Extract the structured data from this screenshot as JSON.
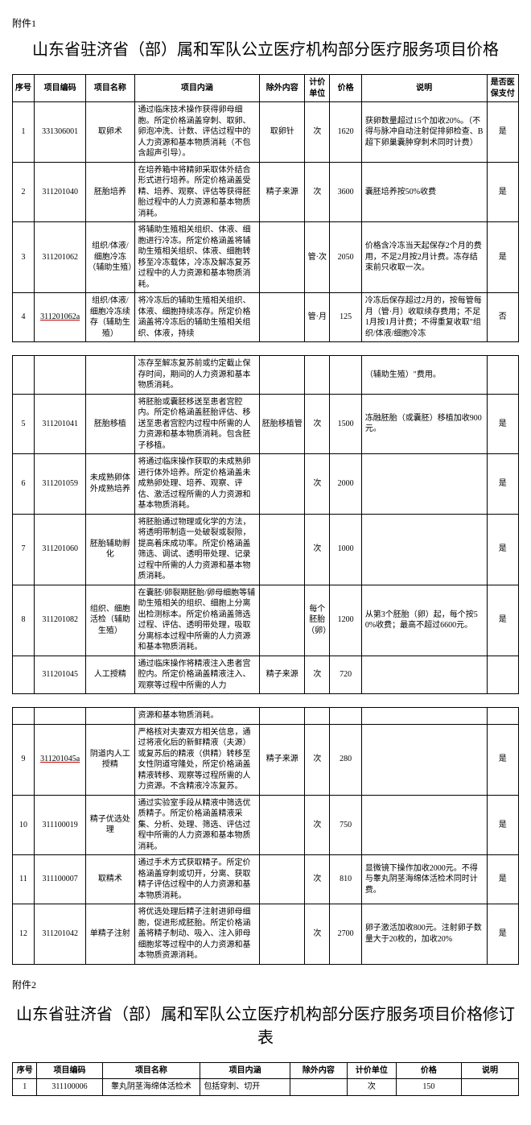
{
  "attachment1": {
    "label": "附件1",
    "title": "山东省驻济省（部）属和军队公立医疗机构部分医疗服务项目价格",
    "headers": {
      "seq": "序号",
      "code": "项目编码",
      "name": "项目名称",
      "desc": "项目内涵",
      "excl": "除外内容",
      "unit": "计价单位",
      "price": "价格",
      "note": "说明",
      "ins": "是否医保支付"
    },
    "rows": [
      {
        "seq": "1",
        "code": "331306001",
        "name": "取卵术",
        "desc": "通过临床技术操作获得卵母细胞。所定价格涵盖穿刺、取卵、卵泡冲洗、计数、评估过程中的人力资源和基本物质消耗（不包含超声引导）。",
        "excl": "取卵针",
        "unit": "次",
        "price": "1620",
        "note": "获卵数量超过15个加收20%。（不得与脉冲自动注射促排卵检查、B超下卵巢囊肿穿刺术同时计费）",
        "ins": "是"
      },
      {
        "seq": "2",
        "code": "311201040",
        "name": "胚胎培养",
        "desc": "在培养箱中将精卵采取体外结合形式进行培养。所定价格涵盖受精、培养、观察、评估等获得胚胎过程中的人力资源和基本物质消耗。",
        "excl": "精子来源",
        "unit": "次",
        "price": "3600",
        "note": "囊胚培养按50%收费",
        "ins": "是"
      },
      {
        "seq": "3",
        "code": "311201062",
        "name": "组织/体液/细胞冷冻（辅助生殖）",
        "desc": "将辅助生殖相关组织、体液、细胞进行冷冻。所定价格涵盖将辅助生殖相关组织、体液、细胞转移至冷冻载体，冷冻及解冻复苏过程中的人力资源和基本物质消耗。",
        "excl": "",
        "unit": "管·次",
        "price": "2050",
        "note": "价格含冷冻当天起保存2个月的费用，不足2月按2月计费。冻存结束前只收取一次。",
        "ins": "是"
      },
      {
        "seq": "4",
        "code": "311201062a",
        "code_underline": true,
        "name": "组织/体液/细胞冷冻续存（辅助生殖）",
        "desc": "将冷冻后的辅助生殖相关组织、体液、细胞持续冻存。所定价格涵盖将冷冻后的辅助生殖相关组织、体液，持续",
        "excl": "",
        "unit": "管·月",
        "price": "125",
        "note": "冷冻后保存超过2月的，按每管每月（管·月）收取续存费用；不足1月按1月计费；不得重复收取\"组织/体液/细胞冷冻",
        "ins": "否"
      },
      {
        "seq": "",
        "code": "",
        "name": "",
        "desc": "冻存至解冻复苏前或约定截止保存时间，期间的人力资源和基本物质消耗。",
        "excl": "",
        "unit": "",
        "price": "",
        "note": "（辅助生殖）\"费用。",
        "ins": ""
      },
      {
        "seq": "5",
        "code": "311201041",
        "name": "胚胎移植",
        "desc": "将胚胎或囊胚移送至患者宫腔内。所定价格涵盖胚胎评估、移送至患者宫腔内过程中所需的人力资源和基本物质消耗。包含胚子移植。",
        "excl": "胚胎移植管",
        "unit": "次",
        "price": "1500",
        "note": "冻融胚胎（或囊胚）移植加收900元。",
        "ins": "是"
      },
      {
        "seq": "6",
        "code": "311201059",
        "name": "未成熟卵体外成熟培养",
        "desc": "将通过临床操作获取的未成熟卵进行体外培养。所定价格涵盖未成熟卵处理、培养、观察、评估、激活过程所需的人力资源和基本物质消耗。",
        "excl": "",
        "unit": "次",
        "price": "2000",
        "note": "",
        "ins": "是"
      },
      {
        "seq": "7",
        "code": "311201060",
        "name": "胚胎辅助孵化",
        "desc": "将胚胎通过物理或化学的方法，将透明带制造一处破裂或裂隙，提高着床成功率。所定价格涵盖筛选、调试、透明带处理、记录过程中所需的人力资源和基本物质消耗。",
        "excl": "",
        "unit": "次",
        "price": "1000",
        "note": "",
        "ins": "是"
      },
      {
        "seq": "8",
        "code": "311201082",
        "name": "组织、细胞活检（辅助生殖）",
        "desc": "在囊胚/卵裂期胚胎/卵母细胞等辅助生殖相关的组织、细胞上分离出检测标本。所定价格涵盖筛选过程、评估、透明带处理，吸取分离标本过程中所需的人力资源和基本物质消耗。",
        "excl": "",
        "unit": "每个胚胎（卵）",
        "price": "1200",
        "note": "从第3个胚胎（卵）起，每个按50%收费；最高不超过6600元。",
        "ins": "是"
      },
      {
        "seq": "",
        "code": "311201045",
        "name": "人工授精",
        "desc": "通过临床操作将精液注入患者宫腔内。所定价格涵盖精液注入、观察等过程中所需的人力",
        "excl": "精子来源",
        "unit": "次",
        "price": "720",
        "note": "",
        "ins": ""
      },
      {
        "seq": "",
        "code": "",
        "name": "",
        "desc": "资源和基本物质消耗。",
        "excl": "",
        "unit": "",
        "price": "",
        "note": "",
        "ins": ""
      },
      {
        "seq": "9",
        "code": "311201045a",
        "code_underline": true,
        "name": "阴道内人工授精",
        "desc": "严格核对夫妻双方相关信息，通过将液化后的新鲜精液（夫源）或复苏后的精液（供精）转移至女性阴道穹隆处，所定价格涵盖精液转移、观察等过程所需的人力资源。不含精液冷冻复苏。",
        "excl": "精子来源",
        "unit": "次",
        "price": "280",
        "note": "",
        "ins": "是"
      },
      {
        "seq": "10",
        "code": "311100019",
        "name": "精子优选处理",
        "desc": "通过实验室手段从精液中筛选优质精子。所定价格涵盖精液采集、分析、处理、筛选、评估过程中所需的人力资源和基本物质消耗。",
        "excl": "",
        "unit": "次",
        "price": "750",
        "note": "",
        "ins": "是"
      },
      {
        "seq": "11",
        "code": "311100007",
        "name": "取精术",
        "desc": "通过手术方式获取精子。所定价格涵盖穿刺或切开，分离、获取精子评估过程中的人力资源和基本物质消耗。",
        "excl": "",
        "unit": "次",
        "price": "810",
        "note": "显微镜下操作加收2000元。不得与睾丸阴茎海绵体活检术同时计费。",
        "ins": "是"
      },
      {
        "seq": "12",
        "code": "311201042",
        "name": "单精子注射",
        "desc": "将优选处理后精子注射进卵母细胞，促进形成胚胎。所定价格涵盖将精子制动、吸入、注入卵母细胞浆等过程中的人力资源和基本物质资源消耗。",
        "excl": "",
        "unit": "次",
        "price": "2700",
        "note": "卵子激活加收800元。注射卵子数量大于20枚的，加收20%",
        "ins": "是"
      }
    ],
    "breaks": [
      4,
      10
    ]
  },
  "attachment2": {
    "label": "附件2",
    "title": "山东省驻济省（部）属和军队公立医疗机构部分医疗服务项目价格修订表",
    "headers": {
      "seq": "序号",
      "code": "项目编码",
      "name": "项目名称",
      "desc": "项目内涵",
      "excl": "除外内容",
      "unit": "计价单位",
      "price": "价格",
      "note": "说明"
    },
    "rows": [
      {
        "seq": "1",
        "code": "311100006",
        "name": "睾丸阴茎海绵体活检术",
        "desc": "包括穿刺、切开",
        "excl": "",
        "unit": "次",
        "price": "150",
        "note": ""
      }
    ]
  }
}
